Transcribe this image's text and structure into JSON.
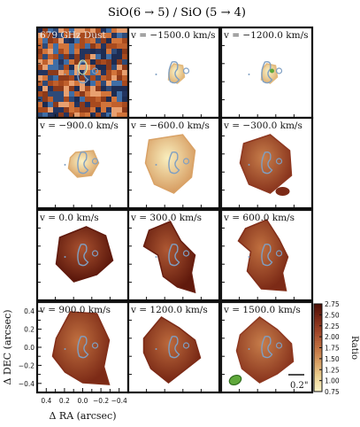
{
  "chart_data": {
    "type": "heatmap",
    "title": "SiO(6 → 5) / SiO (5 → 4)",
    "xlabel": "Δ RA (arcsec)",
    "ylabel": "Δ DEC (arcsec)",
    "x_ticks": [
      "0.4",
      "0.2",
      "0.0",
      "−0.2",
      "−0.4"
    ],
    "y_ticks": [
      "0.4",
      "0.2",
      "0.0",
      "−0.2",
      "−0.4"
    ],
    "xlim": [
      0.5,
      -0.5
    ],
    "ylim": [
      -0.5,
      0.5
    ],
    "colorbar": {
      "label": "Ratio",
      "range": [
        0.75,
        2.75
      ],
      "ticks": [
        "2.75",
        "2.50",
        "2.25",
        "2.00",
        "1.75",
        "1.50",
        "1.25",
        "1.00",
        "0.75"
      ],
      "colors": [
        "#fbf4c6",
        "#edd192",
        "#d8a064",
        "#c07040",
        "#a2482a",
        "#7a2815",
        "#4a0d05"
      ]
    },
    "panels": [
      {
        "label": "679 GHz Dust",
        "kind": "dust",
        "mean_ratio": null
      },
      {
        "label": "v = −1500.0 km/s",
        "kind": "ratio",
        "mean_ratio": 1.0
      },
      {
        "label": "v = −1200.0 km/s",
        "kind": "ratio",
        "mean_ratio": 1.0
      },
      {
        "label": "v = −900.0 km/s",
        "kind": "ratio",
        "mean_ratio": 1.1
      },
      {
        "label": "v = −600.0 km/s",
        "kind": "ratio",
        "mean_ratio": 1.15
      },
      {
        "label": "v = −300.0 km/s",
        "kind": "ratio",
        "mean_ratio": 2.0
      },
      {
        "label": "v = 0.0 km/s",
        "kind": "ratio",
        "mean_ratio": 2.35
      },
      {
        "label": "v = 300.0 km/s",
        "kind": "ratio",
        "mean_ratio": 2.3
      },
      {
        "label": "v = 600.0 km/s",
        "kind": "ratio",
        "mean_ratio": 2.1
      },
      {
        "label": "v = 900.0 km/s",
        "kind": "ratio",
        "mean_ratio": 2.1
      },
      {
        "label": "v = 1200.0 km/s",
        "kind": "ratio",
        "mean_ratio": 2.15
      },
      {
        "label": "v = 1500.0 km/s",
        "kind": "ratio",
        "mean_ratio": 2.0
      }
    ],
    "scalebar_label": "0.2\"",
    "contour_color": "#7f9fc2",
    "beam_color": "#5fa83a"
  }
}
